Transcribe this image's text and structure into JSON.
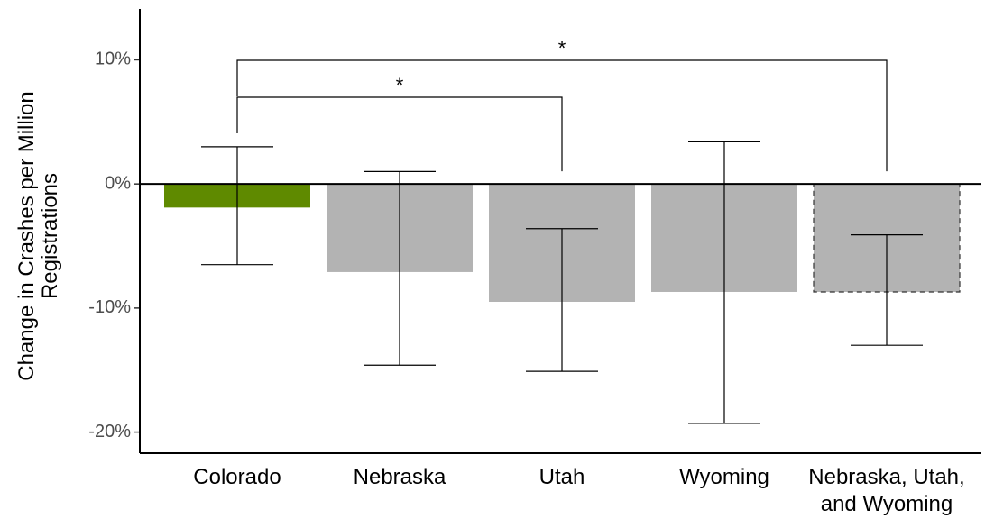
{
  "chart_data": {
    "type": "bar",
    "y_label": "Change in Crashes per Million Registrations",
    "categories": [
      "Colorado",
      "Nebraska",
      "Utah",
      "Wyoming",
      "Nebraska, Utah, and Wyoming"
    ],
    "values": [
      -1.9,
      -7.1,
      -9.5,
      -8.7,
      -8.7
    ],
    "error_low": [
      -6.5,
      -14.6,
      -15.1,
      -19.3,
      -13.0
    ],
    "error_high": [
      3.0,
      1.0,
      -3.6,
      3.4,
      -4.1
    ],
    "colors": [
      "#5f8a00",
      "#b3b3b3",
      "#b3b3b3",
      "#b3b3b3",
      "#b3b3b3"
    ],
    "dashed_outline": [
      false,
      false,
      false,
      false,
      true
    ],
    "ylim": [
      -21.7,
      14.1
    ],
    "yticks": [
      {
        "value": -20,
        "label": "-20%"
      },
      {
        "value": -10,
        "label": "-10%"
      },
      {
        "value": 0,
        "label": "0%"
      },
      {
        "value": 10,
        "label": "10%"
      }
    ],
    "comparisons": [
      {
        "label": "*",
        "between": [
          0,
          2
        ]
      },
      {
        "label": "*",
        "between": [
          0,
          4
        ]
      }
    ]
  }
}
